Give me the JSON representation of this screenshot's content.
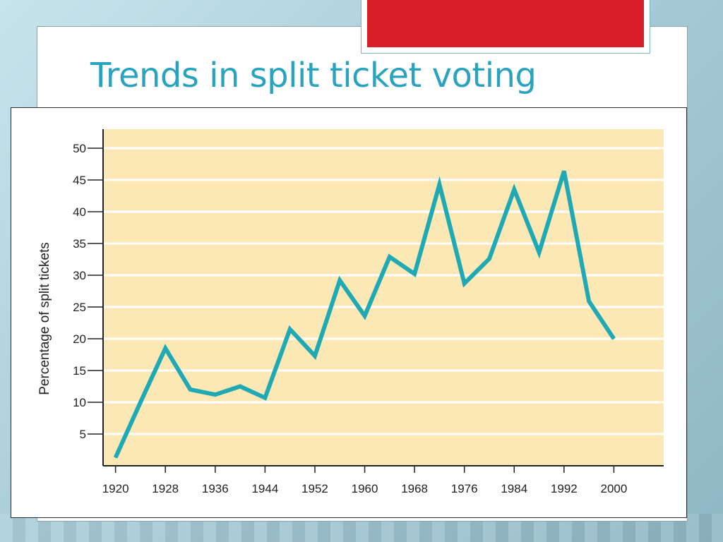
{
  "slide": {
    "title": "Trends in split ticket voting",
    "title_color": "#2aa3bf",
    "accent_color": "#d91f27"
  },
  "chart_data": {
    "type": "line",
    "title": "",
    "xlabel": "",
    "ylabel": "Percentage of split tickets",
    "xlim": [
      1918,
      2008
    ],
    "ylim": [
      0,
      53
    ],
    "x_ticks": [
      1920,
      1928,
      1936,
      1944,
      1952,
      1960,
      1968,
      1976,
      1984,
      1992,
      2000
    ],
    "y_ticks": [
      5,
      10,
      15,
      20,
      25,
      30,
      35,
      40,
      45,
      50
    ],
    "grid": true,
    "plot_background": "#fbe8b4",
    "series": [
      {
        "color": "#1fa9b4",
        "x": [
          1920,
          1924,
          1928,
          1932,
          1936,
          1940,
          1944,
          1948,
          1952,
          1956,
          1960,
          1964,
          1968,
          1972,
          1976,
          1980,
          1984,
          1988,
          1992,
          1996,
          2000
        ],
        "y": [
          1.3,
          10,
          18.5,
          12,
          11.2,
          12.5,
          10.7,
          21.5,
          17.3,
          29.2,
          23.6,
          32.9,
          30.2,
          44.3,
          28.7,
          32.6,
          43.5,
          33.6,
          46.4,
          25.9,
          20
        ]
      }
    ]
  }
}
